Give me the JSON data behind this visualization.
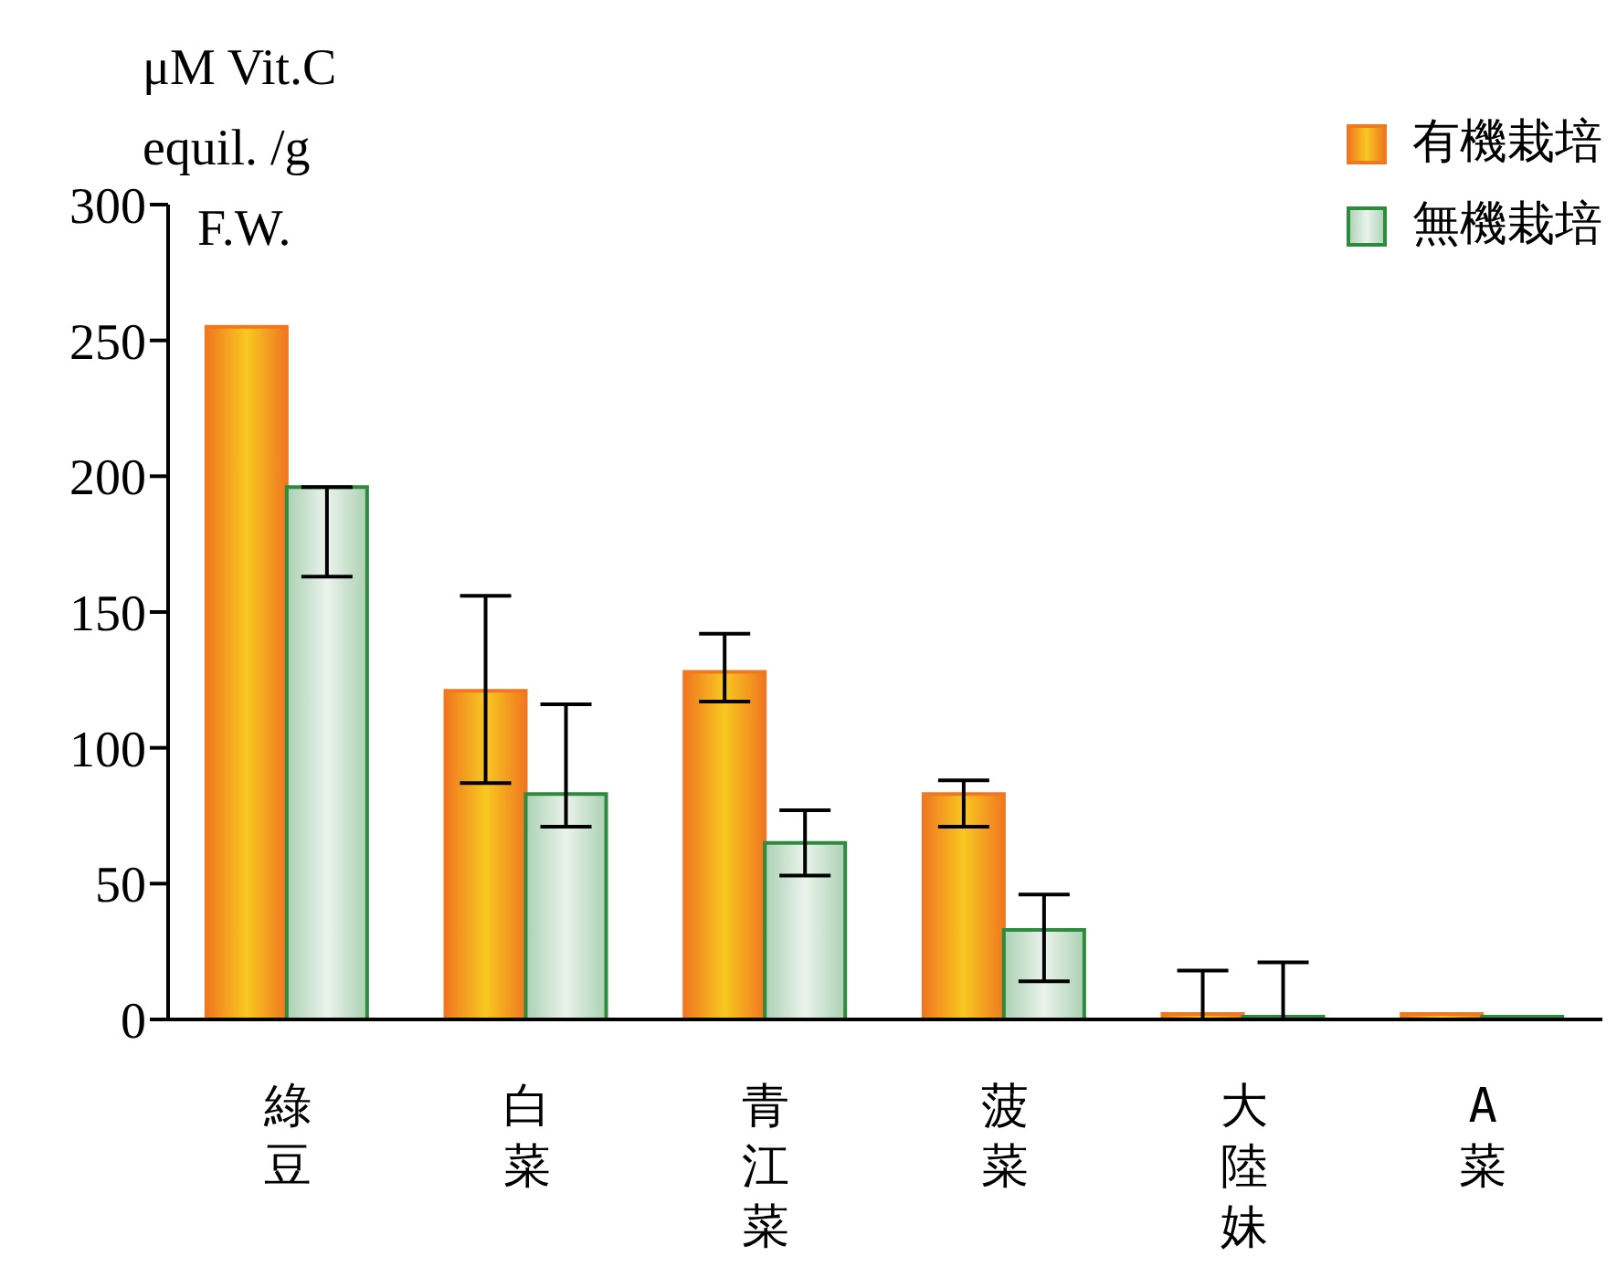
{
  "chart_data": {
    "type": "bar",
    "ylabel": "μM Vit.C equil. /g F.W.",
    "categories": [
      "綠豆",
      "白菜",
      "青江菜",
      "菠菜",
      "大陸妹",
      "A菜"
    ],
    "series": [
      {
        "name": "有機栽培",
        "color": "#f07820",
        "values": [
          255,
          121,
          128,
          83,
          2,
          2
        ],
        "errors": [
          null,
          [
            87,
            156
          ],
          [
            117,
            142
          ],
          [
            71,
            88
          ],
          [
            0,
            18
          ],
          null
        ]
      },
      {
        "name": "無機栽培",
        "color": "#2e8b3e",
        "values": [
          196,
          83,
          65,
          33,
          1,
          1
        ],
        "errors": [
          [
            163,
            196
          ],
          [
            71,
            116
          ],
          [
            53,
            77
          ],
          [
            14,
            46
          ],
          [
            0,
            21
          ],
          null
        ]
      }
    ],
    "ylim": [
      0,
      300
    ],
    "yticks": [
      0,
      50,
      100,
      150,
      200,
      250,
      300
    ],
    "legend": "top right"
  }
}
